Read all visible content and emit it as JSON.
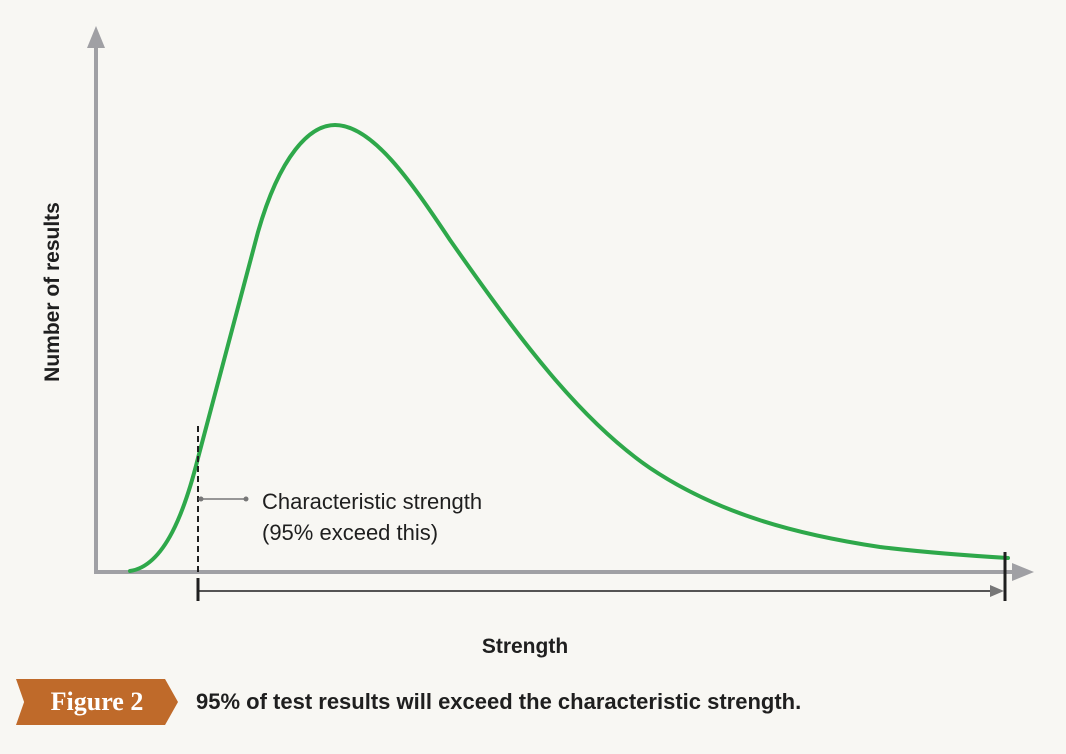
{
  "chart_data": {
    "type": "line",
    "xlabel": "Strength",
    "ylabel": "Number of results",
    "annotation": {
      "line1": "Characteristic strength",
      "line2": "(95% exceed this)"
    },
    "colors": {
      "curve": "#2ea84a",
      "axis": "#a0a0a4",
      "marker": "#1f1f1f",
      "badge": "#bf6a2a"
    }
  },
  "figure": {
    "badge_label": "Figure 2",
    "caption": "95% of test results will exceed the characteristic strength."
  }
}
